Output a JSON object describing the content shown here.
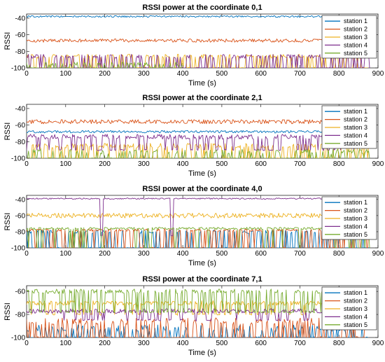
{
  "chart_data": [
    {
      "type": "line",
      "title": "RSSI power at the coordinate 0,1",
      "xlabel": "Time (s)",
      "ylabel": "RSSI",
      "xlim": [
        0,
        900
      ],
      "ylim": [
        -100,
        -35
      ],
      "xticks": [
        0,
        100,
        200,
        300,
        400,
        500,
        600,
        700,
        800,
        900
      ],
      "yticks": [
        -100,
        -80,
        -60,
        -40
      ],
      "legend_position": "top-right",
      "x_end": 880,
      "series": [
        {
          "name": "station 1",
          "color": "#0072BD",
          "baseline": -38,
          "noise": 1.0,
          "drop": -38,
          "drop_prob": 0.0,
          "end": 880
        },
        {
          "name": "station 2",
          "color": "#D95319",
          "baseline": -67,
          "noise": 2.0,
          "drop": -67,
          "drop_prob": 0.0,
          "end": 880
        },
        {
          "name": "station 3",
          "color": "#EDB120",
          "baseline": -86,
          "noise": 2.5,
          "drop": -100,
          "drop_prob": 0.35,
          "end": 880
        },
        {
          "name": "station 4",
          "color": "#7E2F8E",
          "baseline": -86,
          "noise": 2.5,
          "drop": -100,
          "drop_prob": 0.4,
          "end": 880
        },
        {
          "name": "station 5",
          "color": "#77AC30",
          "baseline": -95,
          "noise": 2.0,
          "drop": -100,
          "drop_prob": 0.5,
          "end": 400
        }
      ]
    },
    {
      "type": "line",
      "title": "RSSI power at the coordinate 2,1",
      "xlabel": "Time (s)",
      "ylabel": "RSSI",
      "xlim": [
        0,
        900
      ],
      "ylim": [
        -100,
        -35
      ],
      "xticks": [
        0,
        100,
        200,
        300,
        400,
        500,
        600,
        700,
        800,
        900
      ],
      "yticks": [
        -100,
        -80,
        -60,
        -40
      ],
      "legend_position": "top-right",
      "x_end": 880,
      "series": [
        {
          "name": "station 1",
          "color": "#0072BD",
          "baseline": -68,
          "noise": 1.5,
          "drop": -68,
          "drop_prob": 0.0,
          "end": 880
        },
        {
          "name": "station 2",
          "color": "#D95319",
          "baseline": -56,
          "noise": 2.5,
          "drop": -56,
          "drop_prob": 0.0,
          "end": 880
        },
        {
          "name": "station 3",
          "color": "#EDB120",
          "baseline": -85,
          "noise": 3.0,
          "drop": -100,
          "drop_prob": 0.35,
          "end": 880
        },
        {
          "name": "station 4",
          "color": "#7E2F8E",
          "baseline": -74,
          "noise": 3.0,
          "drop": -90,
          "drop_prob": 0.15,
          "end": 880
        },
        {
          "name": "station 5",
          "color": "#77AC30",
          "baseline": -92,
          "noise": 3.0,
          "drop": -100,
          "drop_prob": 0.45,
          "end": 880
        }
      ]
    },
    {
      "type": "line",
      "title": "RSSI power at the coordinate 4,0",
      "xlabel": "Time (s)",
      "ylabel": "RSSI",
      "xlim": [
        0,
        900
      ],
      "ylim": [
        -100,
        -35
      ],
      "xticks": [
        0,
        100,
        200,
        300,
        400,
        500,
        600,
        700,
        800,
        900
      ],
      "yticks": [
        -100,
        -80,
        -60,
        -40
      ],
      "legend_position": "top-right",
      "x_end": 880,
      "series": [
        {
          "name": "station 1",
          "color": "#0072BD",
          "baseline": -80,
          "noise": 2.0,
          "drop": -100,
          "drop_prob": 0.4,
          "end": 880
        },
        {
          "name": "station 2",
          "color": "#D95319",
          "baseline": -78,
          "noise": 1.5,
          "drop": -100,
          "drop_prob": 0.25,
          "end": 880
        },
        {
          "name": "station 3",
          "color": "#EDB120",
          "baseline": -60,
          "noise": 3.0,
          "drop": -60,
          "drop_prob": 0.0,
          "end": 880
        },
        {
          "name": "station 4",
          "color": "#7E2F8E",
          "baseline": -39,
          "noise": 0.8,
          "drop": -85,
          "drop_prob": 0.003,
          "end": 880
        },
        {
          "name": "station 5",
          "color": "#77AC30",
          "baseline": -76,
          "noise": 1.5,
          "drop": -100,
          "drop_prob": 0.1,
          "end": 880
        }
      ]
    },
    {
      "type": "line",
      "title": "RSSI power at the coordinate 7,1",
      "xlabel": "Time (s)",
      "ylabel": "RSSI",
      "xlim": [
        0,
        900
      ],
      "ylim": [
        -100,
        -55
      ],
      "xticks": [
        0,
        100,
        200,
        300,
        400,
        500,
        600,
        700,
        800,
        900
      ],
      "yticks": [
        -100,
        -80,
        -60
      ],
      "legend_position": "top-right",
      "x_end": 880,
      "series": [
        {
          "name": "station 1",
          "color": "#0072BD",
          "baseline": -92,
          "noise": 3.0,
          "drop": -100,
          "drop_prob": 0.45,
          "end": 880
        },
        {
          "name": "station 2",
          "color": "#D95319",
          "baseline": -86,
          "noise": 3.0,
          "drop": -100,
          "drop_prob": 0.4,
          "end": 880
        },
        {
          "name": "station 3",
          "color": "#EDB120",
          "baseline": -70,
          "noise": 2.0,
          "drop": -80,
          "drop_prob": 0.1,
          "end": 880
        },
        {
          "name": "station 4",
          "color": "#7E2F8E",
          "baseline": -77,
          "noise": 2.0,
          "drop": -85,
          "drop_prob": 0.1,
          "end": 880
        },
        {
          "name": "station 5",
          "color": "#77AC30",
          "baseline": -60,
          "noise": 2.0,
          "drop": -78,
          "drop_prob": 0.25,
          "end": 880
        }
      ]
    }
  ]
}
